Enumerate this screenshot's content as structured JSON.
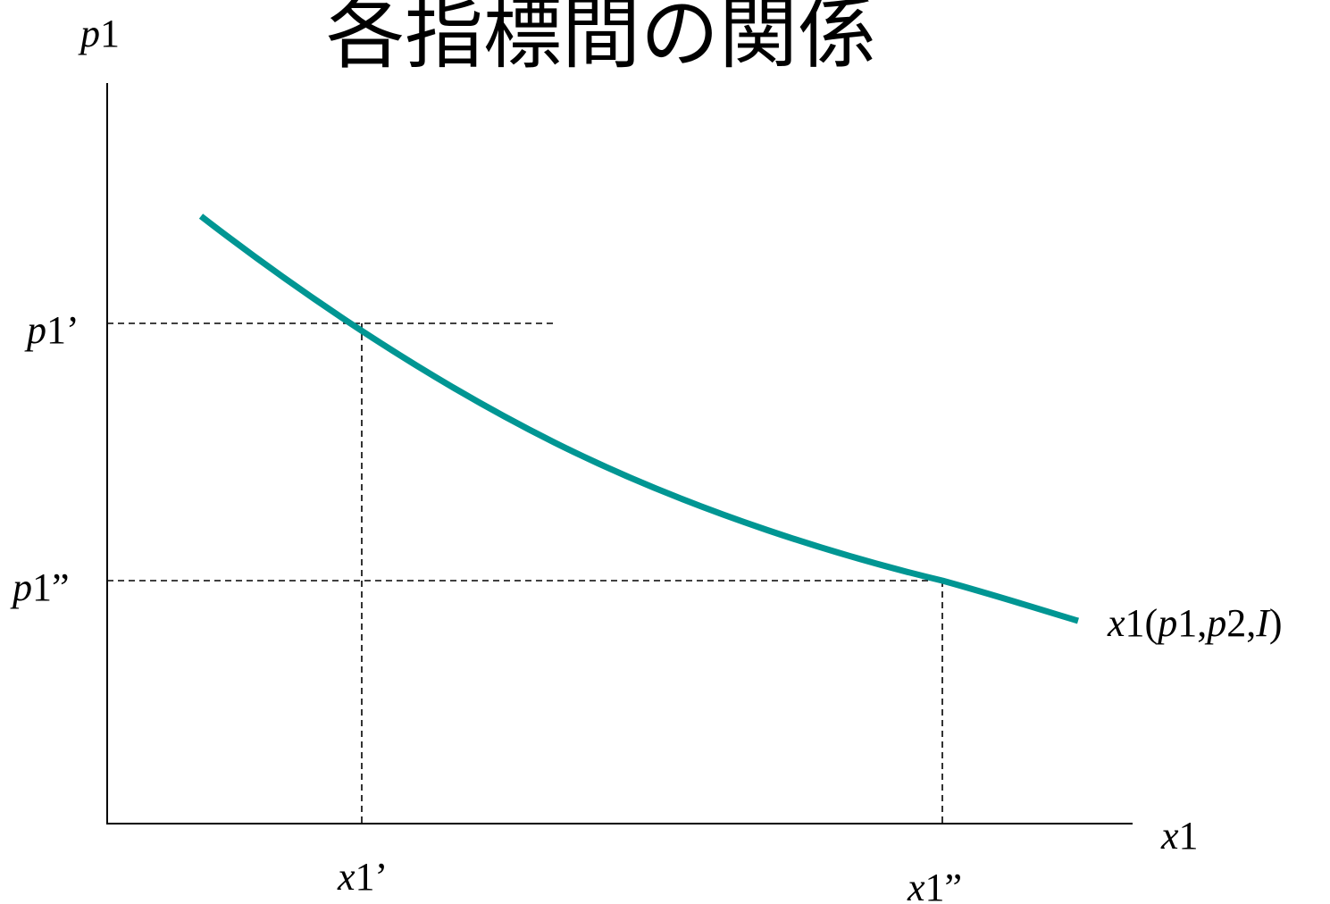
{
  "title": "各指標間の関係",
  "axes": {
    "y_label": {
      "var": "p",
      "sub": "1"
    },
    "x_label": {
      "var": "x",
      "sub": "1"
    }
  },
  "price_levels": [
    {
      "var": "p",
      "sub": "1",
      "mark": "’"
    },
    {
      "var": "p",
      "sub": "1",
      "mark": "”"
    }
  ],
  "quantity_levels": [
    {
      "var": "x",
      "sub": "1",
      "mark": "’"
    },
    {
      "var": "x",
      "sub": "1",
      "mark": "”"
    }
  ],
  "curve_label": {
    "fn": "x",
    "fn_sub": "1",
    "open": "(",
    "a1": "p",
    "a1_sub": "1",
    "comma1": ",",
    "a2": "p",
    "a2_sub": "2",
    "comma2": ",",
    "a3": "I",
    "close": ")"
  },
  "colors": {
    "curve": "#009693",
    "axis": "#000000"
  }
}
